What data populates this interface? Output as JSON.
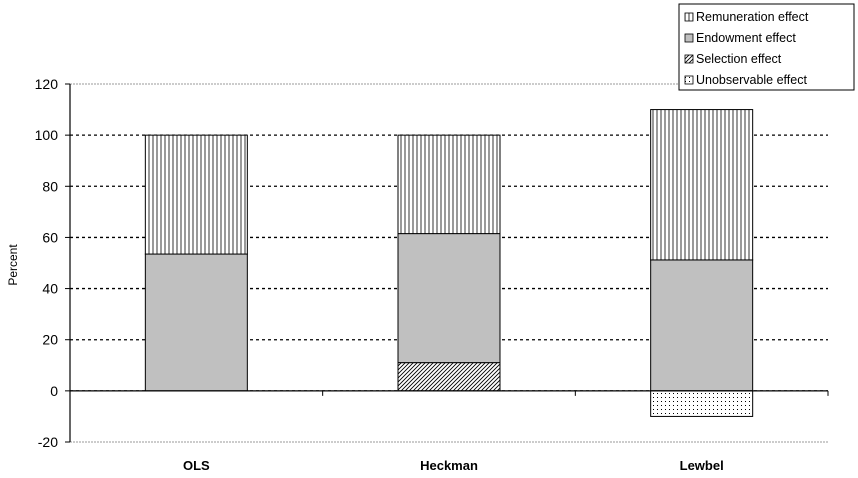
{
  "chart_data": {
    "type": "bar",
    "stacked": true,
    "title": "",
    "xlabel": "",
    "ylabel": "Percent",
    "ylim": [
      -20,
      120
    ],
    "yticks": [
      -20,
      0,
      20,
      40,
      60,
      80,
      100,
      120
    ],
    "grid": true,
    "legend_position": "top-right",
    "categories": [
      "OLS",
      "Heckman",
      "Lewbel"
    ],
    "series": [
      {
        "name": "Remuneration effect",
        "pattern": "vertical-lines",
        "color": "#ffffff",
        "values": [
          46.5,
          38.5,
          58.8
        ]
      },
      {
        "name": "Endowment effect",
        "pattern": "solid",
        "color": "#c0c0c0",
        "values": [
          53.5,
          50.5,
          51.2
        ]
      },
      {
        "name": "Selection effect",
        "pattern": "diagonal-hatch",
        "color": "#ffffff",
        "values": [
          0,
          11,
          0
        ]
      },
      {
        "name": "Unobservable effect",
        "pattern": "dots",
        "color": "#ffffff",
        "values": [
          0,
          0,
          -10
        ]
      }
    ]
  }
}
